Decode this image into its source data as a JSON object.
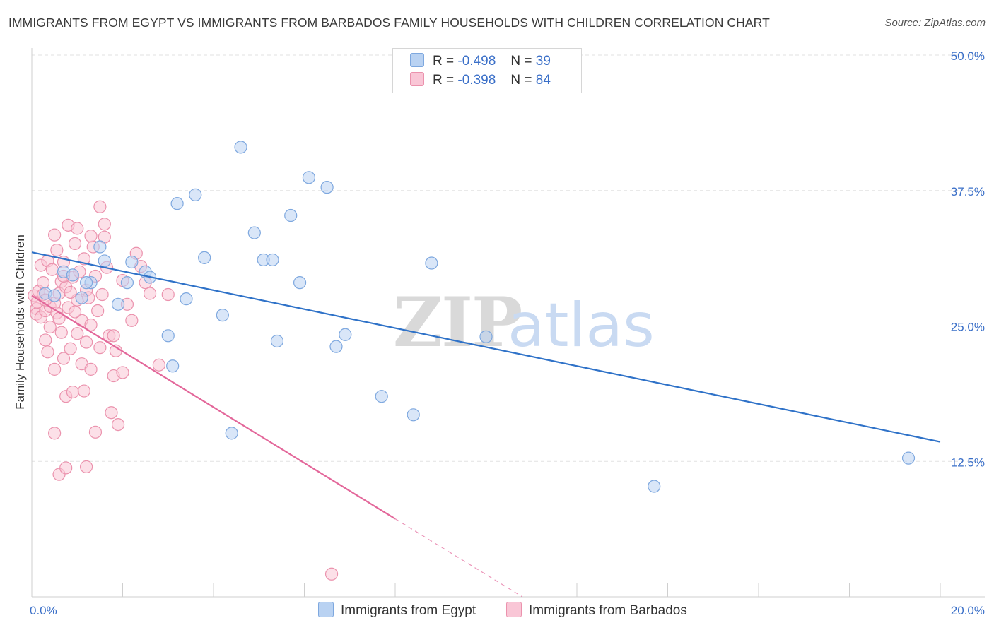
{
  "title": "IMMIGRANTS FROM EGYPT VS IMMIGRANTS FROM BARBADOS FAMILY HOUSEHOLDS WITH CHILDREN CORRELATION CHART",
  "source": "Source: ZipAtlas.com",
  "watermark": {
    "zip": "ZIP",
    "atlas": "atlas"
  },
  "legend": {
    "r_label": "R =",
    "n_label": "N =",
    "series": [
      {
        "name": "Immigrants from Egypt",
        "r": "-0.498",
        "n": "39"
      },
      {
        "name": "Immigrants from Barbados",
        "r": "-0.398",
        "n": "84"
      }
    ]
  },
  "colors": {
    "egypt_fill": "#b9d2f2",
    "egypt_stroke": "#7ea8df",
    "egypt_line": "#2f72c8",
    "barbados_fill": "#f9c6d6",
    "barbados_stroke": "#eb92ad",
    "barbados_line": "#e3679a",
    "axis_label": "#3a6fc8",
    "grid": "#e2e2e2"
  },
  "chart_data": {
    "type": "scatter",
    "title": "IMMIGRANTS FROM EGYPT VS IMMIGRANTS FROM BARBADOS FAMILY HOUSEHOLDS WITH CHILDREN CORRELATION CHART",
    "xlabel": "",
    "ylabel": "Family Households with Children",
    "xlim": [
      0,
      20
    ],
    "ylim": [
      0,
      50
    ],
    "x_ticks": [
      {
        "value": 0,
        "label": "0.0%"
      },
      {
        "value": 20,
        "label": "20.0%"
      }
    ],
    "y_ticks": [
      {
        "value": 12.5,
        "label": "12.5%"
      },
      {
        "value": 25,
        "label": "25.0%"
      },
      {
        "value": 37.5,
        "label": "37.5%"
      },
      {
        "value": 50,
        "label": "50.0%"
      }
    ],
    "series": [
      {
        "name": "Immigrants from Egypt",
        "points": [
          [
            0.3,
            28.0
          ],
          [
            0.7,
            30.0
          ],
          [
            0.9,
            29.7
          ],
          [
            1.1,
            27.6
          ],
          [
            1.3,
            29.0
          ],
          [
            1.5,
            32.3
          ],
          [
            1.6,
            31.0
          ],
          [
            1.9,
            27.0
          ],
          [
            2.1,
            29.0
          ],
          [
            2.2,
            30.9
          ],
          [
            2.5,
            30.0
          ],
          [
            2.6,
            29.5
          ],
          [
            3.0,
            24.1
          ],
          [
            3.1,
            21.3
          ],
          [
            3.2,
            36.3
          ],
          [
            3.4,
            27.5
          ],
          [
            3.6,
            37.1
          ],
          [
            3.8,
            31.3
          ],
          [
            4.2,
            26.0
          ],
          [
            4.4,
            15.1
          ],
          [
            4.6,
            41.5
          ],
          [
            4.9,
            33.6
          ],
          [
            5.1,
            31.1
          ],
          [
            5.3,
            31.1
          ],
          [
            5.4,
            23.6
          ],
          [
            5.7,
            35.2
          ],
          [
            5.9,
            29.0
          ],
          [
            6.1,
            38.7
          ],
          [
            6.5,
            37.8
          ],
          [
            6.7,
            23.1
          ],
          [
            6.9,
            24.2
          ],
          [
            7.7,
            18.5
          ],
          [
            8.4,
            16.8
          ],
          [
            8.8,
            30.8
          ],
          [
            10.0,
            24.0
          ],
          [
            13.7,
            10.2
          ],
          [
            19.3,
            12.8
          ],
          [
            0.5,
            27.8
          ],
          [
            1.2,
            29.0
          ]
        ],
        "trend": {
          "x0": 0,
          "y0": 31.8,
          "x1": 20,
          "y1": 14.3
        }
      },
      {
        "name": "Immigrants from Barbados",
        "points": [
          [
            0.05,
            27.8
          ],
          [
            0.1,
            26.6
          ],
          [
            0.1,
            26.1
          ],
          [
            0.12,
            27.2
          ],
          [
            0.15,
            28.2
          ],
          [
            0.2,
            30.6
          ],
          [
            0.2,
            25.8
          ],
          [
            0.25,
            29.0
          ],
          [
            0.3,
            26.4
          ],
          [
            0.3,
            23.7
          ],
          [
            0.35,
            31.0
          ],
          [
            0.35,
            22.6
          ],
          [
            0.4,
            26.8
          ],
          [
            0.4,
            24.9
          ],
          [
            0.45,
            30.2
          ],
          [
            0.5,
            33.4
          ],
          [
            0.5,
            27.1
          ],
          [
            0.5,
            21.0
          ],
          [
            0.55,
            32.0
          ],
          [
            0.55,
            26.2
          ],
          [
            0.6,
            28.0
          ],
          [
            0.6,
            25.7
          ],
          [
            0.65,
            29.1
          ],
          [
            0.65,
            24.4
          ],
          [
            0.7,
            30.9
          ],
          [
            0.7,
            22.0
          ],
          [
            0.75,
            28.6
          ],
          [
            0.75,
            18.5
          ],
          [
            0.8,
            34.3
          ],
          [
            0.8,
            26.7
          ],
          [
            0.85,
            22.9
          ],
          [
            0.9,
            29.5
          ],
          [
            0.9,
            18.9
          ],
          [
            0.95,
            32.6
          ],
          [
            1.0,
            27.4
          ],
          [
            1.0,
            24.3
          ],
          [
            1.05,
            30.0
          ],
          [
            1.1,
            25.5
          ],
          [
            1.1,
            21.5
          ],
          [
            1.15,
            31.2
          ],
          [
            1.15,
            19.0
          ],
          [
            1.2,
            28.3
          ],
          [
            1.2,
            23.5
          ],
          [
            1.25,
            27.6
          ],
          [
            1.3,
            25.1
          ],
          [
            1.3,
            21.0
          ],
          [
            1.35,
            32.3
          ],
          [
            1.4,
            29.6
          ],
          [
            1.45,
            26.4
          ],
          [
            1.5,
            23.0
          ],
          [
            1.5,
            36.0
          ],
          [
            1.55,
            27.9
          ],
          [
            1.6,
            33.2
          ],
          [
            1.65,
            30.4
          ],
          [
            1.7,
            24.1
          ],
          [
            1.75,
            17.0
          ],
          [
            1.8,
            20.4
          ],
          [
            1.85,
            22.7
          ],
          [
            1.9,
            15.9
          ],
          [
            2.0,
            29.2
          ],
          [
            2.1,
            27.0
          ],
          [
            2.2,
            25.5
          ],
          [
            2.3,
            31.7
          ],
          [
            2.4,
            30.5
          ],
          [
            2.5,
            29.0
          ],
          [
            2.6,
            28.0
          ],
          [
            2.8,
            21.4
          ],
          [
            3.0,
            27.9
          ],
          [
            0.25,
            27.9
          ],
          [
            0.3,
            27.4
          ],
          [
            0.7,
            29.6
          ],
          [
            0.85,
            28.1
          ],
          [
            1.0,
            34.0
          ],
          [
            1.3,
            33.3
          ],
          [
            1.6,
            34.4
          ],
          [
            1.8,
            24.1
          ],
          [
            2.0,
            20.7
          ],
          [
            0.6,
            11.3
          ],
          [
            0.75,
            11.9
          ],
          [
            1.2,
            12.0
          ],
          [
            0.5,
            15.1
          ],
          [
            1.4,
            15.2
          ],
          [
            6.6,
            2.1
          ],
          [
            0.95,
            26.3
          ]
        ],
        "trend": {
          "x0": 0,
          "y0": 27.8,
          "x1": 8.0,
          "y1": 7.2
        },
        "trend_dashed": {
          "x0": 8.0,
          "y0": 7.2,
          "x1": 10.8,
          "y1": 0.0
        }
      }
    ]
  }
}
